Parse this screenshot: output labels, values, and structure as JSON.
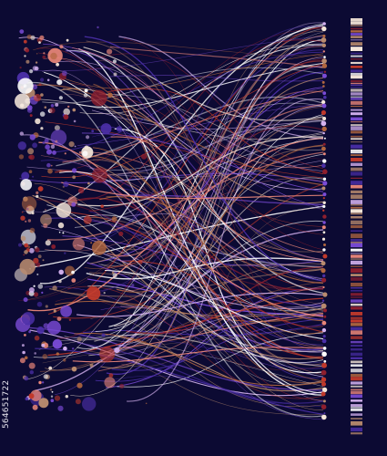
{
  "palette": {
    "background": "#0c0a33",
    "colors": [
      "#f4e6d9",
      "#e98679",
      "#c0392b",
      "#8e1f2e",
      "#7a4bd6",
      "#4b2fa8",
      "#b98b6e",
      "#d4b2f0",
      "#ffffff",
      "#b0663f"
    ]
  },
  "watermark": {
    "id_text": "564651722"
  }
}
